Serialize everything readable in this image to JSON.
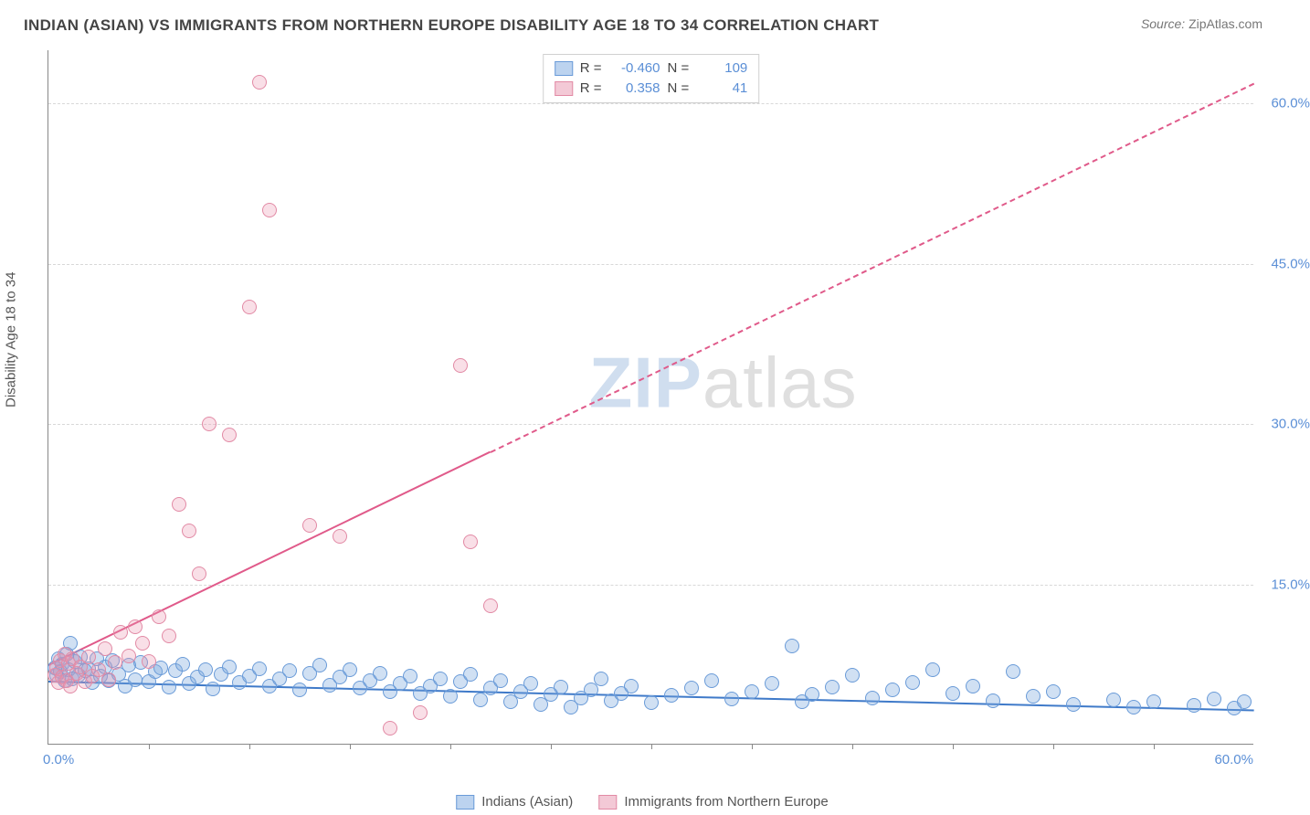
{
  "title": "INDIAN (ASIAN) VS IMMIGRANTS FROM NORTHERN EUROPE DISABILITY AGE 18 TO 34 CORRELATION CHART",
  "source": {
    "label": "Source:",
    "value": "ZipAtlas.com"
  },
  "watermark": {
    "part1": "ZIP",
    "part2": "atlas"
  },
  "ylabel": "Disability Age 18 to 34",
  "chart": {
    "type": "scatter",
    "xlim": [
      0,
      60
    ],
    "ylim": [
      0,
      65
    ],
    "ytick_values": [
      15,
      30,
      45,
      60
    ],
    "ytick_labels": [
      "15.0%",
      "30.0%",
      "45.0%",
      "60.0%"
    ],
    "x_origin_label": "0.0%",
    "x_max_label": "60.0%",
    "xtick_minor": [
      5,
      10,
      15,
      20,
      25,
      30,
      35,
      40,
      45,
      50,
      55
    ],
    "grid_color": "#d8d8d8",
    "background_color": "#ffffff",
    "marker_radius": 8,
    "series": [
      {
        "name": "Indians (Asian)",
        "fill": "rgba(120,165,220,0.35)",
        "stroke": "#6a9bd8",
        "swatch_fill": "#bcd3ef",
        "swatch_stroke": "#6a9bd8",
        "trend": {
          "x1": 0,
          "y1": 6.0,
          "x2": 60,
          "y2": 3.3,
          "color": "#3f7ac9",
          "dash_after_x": null
        },
        "R": "-0.460",
        "N": "109",
        "points": [
          [
            0.3,
            7.2
          ],
          [
            0.4,
            6.5
          ],
          [
            0.5,
            8.0
          ],
          [
            0.6,
            6.8
          ],
          [
            0.7,
            7.5
          ],
          [
            0.8,
            6.0
          ],
          [
            0.9,
            8.5
          ],
          [
            1.0,
            7.0
          ],
          [
            1.1,
            9.5
          ],
          [
            1.2,
            6.2
          ],
          [
            1.3,
            7.8
          ],
          [
            1.5,
            6.5
          ],
          [
            1.6,
            8.2
          ],
          [
            1.8,
            6.9
          ],
          [
            2.0,
            7.1
          ],
          [
            2.2,
            5.8
          ],
          [
            2.4,
            8.0
          ],
          [
            2.6,
            6.4
          ],
          [
            2.8,
            7.3
          ],
          [
            3.0,
            6.0
          ],
          [
            3.2,
            7.9
          ],
          [
            3.5,
            6.6
          ],
          [
            3.8,
            5.5
          ],
          [
            4.0,
            7.4
          ],
          [
            4.3,
            6.1
          ],
          [
            4.6,
            7.7
          ],
          [
            5.0,
            5.9
          ],
          [
            5.3,
            6.8
          ],
          [
            5.6,
            7.2
          ],
          [
            6.0,
            5.4
          ],
          [
            6.3,
            6.9
          ],
          [
            6.7,
            7.5
          ],
          [
            7.0,
            5.7
          ],
          [
            7.4,
            6.3
          ],
          [
            7.8,
            7.0
          ],
          [
            8.2,
            5.2
          ],
          [
            8.6,
            6.6
          ],
          [
            9.0,
            7.3
          ],
          [
            9.5,
            5.8
          ],
          [
            10.0,
            6.4
          ],
          [
            10.5,
            7.1
          ],
          [
            11.0,
            5.5
          ],
          [
            11.5,
            6.2
          ],
          [
            12.0,
            6.9
          ],
          [
            12.5,
            5.1
          ],
          [
            13.0,
            6.7
          ],
          [
            13.5,
            7.4
          ],
          [
            14.0,
            5.6
          ],
          [
            14.5,
            6.3
          ],
          [
            15.0,
            7.0
          ],
          [
            15.5,
            5.3
          ],
          [
            16.0,
            6.0
          ],
          [
            16.5,
            6.7
          ],
          [
            17.0,
            5.0
          ],
          [
            17.5,
            5.7
          ],
          [
            18.0,
            6.4
          ],
          [
            18.5,
            4.8
          ],
          [
            19.0,
            5.5
          ],
          [
            19.5,
            6.2
          ],
          [
            20.0,
            4.5
          ],
          [
            20.5,
            5.9
          ],
          [
            21.0,
            6.6
          ],
          [
            21.5,
            4.2
          ],
          [
            22.0,
            5.3
          ],
          [
            22.5,
            6.0
          ],
          [
            23.0,
            4.0
          ],
          [
            23.5,
            5.0
          ],
          [
            24.0,
            5.7
          ],
          [
            24.5,
            3.8
          ],
          [
            25.0,
            4.7
          ],
          [
            25.5,
            5.4
          ],
          [
            26.0,
            3.5
          ],
          [
            26.5,
            4.4
          ],
          [
            27.0,
            5.1
          ],
          [
            27.5,
            6.2
          ],
          [
            28.0,
            4.1
          ],
          [
            28.5,
            4.8
          ],
          [
            29.0,
            5.5
          ],
          [
            30.0,
            3.9
          ],
          [
            31.0,
            4.6
          ],
          [
            32.0,
            5.3
          ],
          [
            33.0,
            6.0
          ],
          [
            34.0,
            4.3
          ],
          [
            35.0,
            5.0
          ],
          [
            36.0,
            5.7
          ],
          [
            37.0,
            9.2
          ],
          [
            37.5,
            4.0
          ],
          [
            38.0,
            4.7
          ],
          [
            39.0,
            5.4
          ],
          [
            40.0,
            6.5
          ],
          [
            41.0,
            4.4
          ],
          [
            42.0,
            5.1
          ],
          [
            43.0,
            5.8
          ],
          [
            44.0,
            7.0
          ],
          [
            45.0,
            4.8
          ],
          [
            46.0,
            5.5
          ],
          [
            47.0,
            4.1
          ],
          [
            48.0,
            6.8
          ],
          [
            49.0,
            4.5
          ],
          [
            50.0,
            5.0
          ],
          [
            51.0,
            3.8
          ],
          [
            53.0,
            4.2
          ],
          [
            54.0,
            3.5
          ],
          [
            55.0,
            4.0
          ],
          [
            57.0,
            3.7
          ],
          [
            58.0,
            4.3
          ],
          [
            59.0,
            3.4
          ],
          [
            59.5,
            4.0
          ]
        ]
      },
      {
        "name": "Immigrants from Northern Europe",
        "fill": "rgba(235,150,175,0.30)",
        "stroke": "#e28aa5",
        "swatch_fill": "#f3c9d6",
        "swatch_stroke": "#e28aa5",
        "trend": {
          "x1": 0,
          "y1": 7.5,
          "x2": 60,
          "y2": 62.0,
          "color": "#e05a8a",
          "dash_after_x": 22
        },
        "R": "0.358",
        "N": "41",
        "points": [
          [
            0.3,
            6.5
          ],
          [
            0.4,
            7.2
          ],
          [
            0.5,
            5.8
          ],
          [
            0.6,
            7.9
          ],
          [
            0.7,
            6.3
          ],
          [
            0.8,
            8.5
          ],
          [
            0.9,
            6.0
          ],
          [
            1.0,
            7.6
          ],
          [
            1.1,
            5.5
          ],
          [
            1.2,
            8.0
          ],
          [
            1.4,
            6.7
          ],
          [
            1.6,
            7.3
          ],
          [
            1.8,
            5.9
          ],
          [
            2.0,
            8.2
          ],
          [
            2.2,
            6.4
          ],
          [
            2.5,
            7.0
          ],
          [
            2.8,
            9.0
          ],
          [
            3.0,
            6.1
          ],
          [
            3.3,
            7.7
          ],
          [
            3.6,
            10.5
          ],
          [
            4.0,
            8.3
          ],
          [
            4.3,
            11.0
          ],
          [
            4.7,
            9.5
          ],
          [
            5.0,
            7.8
          ],
          [
            5.5,
            12.0
          ],
          [
            6.0,
            10.2
          ],
          [
            6.5,
            22.5
          ],
          [
            7.0,
            20.0
          ],
          [
            7.5,
            16.0
          ],
          [
            8.0,
            30.0
          ],
          [
            9.0,
            29.0
          ],
          [
            10.0,
            41.0
          ],
          [
            10.5,
            62.0
          ],
          [
            11.0,
            50.0
          ],
          [
            13.0,
            20.5
          ],
          [
            14.5,
            19.5
          ],
          [
            17.0,
            1.5
          ],
          [
            18.5,
            3.0
          ],
          [
            20.5,
            35.5
          ],
          [
            21.0,
            19.0
          ],
          [
            22.0,
            13.0
          ]
        ]
      }
    ]
  },
  "stats_labels": {
    "R": "R =",
    "N": "N ="
  },
  "legend": {
    "items": [
      {
        "label": "Indians (Asian)",
        "fill": "#bcd3ef",
        "stroke": "#6a9bd8"
      },
      {
        "label": "Immigrants from Northern Europe",
        "fill": "#f3c9d6",
        "stroke": "#e28aa5"
      }
    ]
  }
}
